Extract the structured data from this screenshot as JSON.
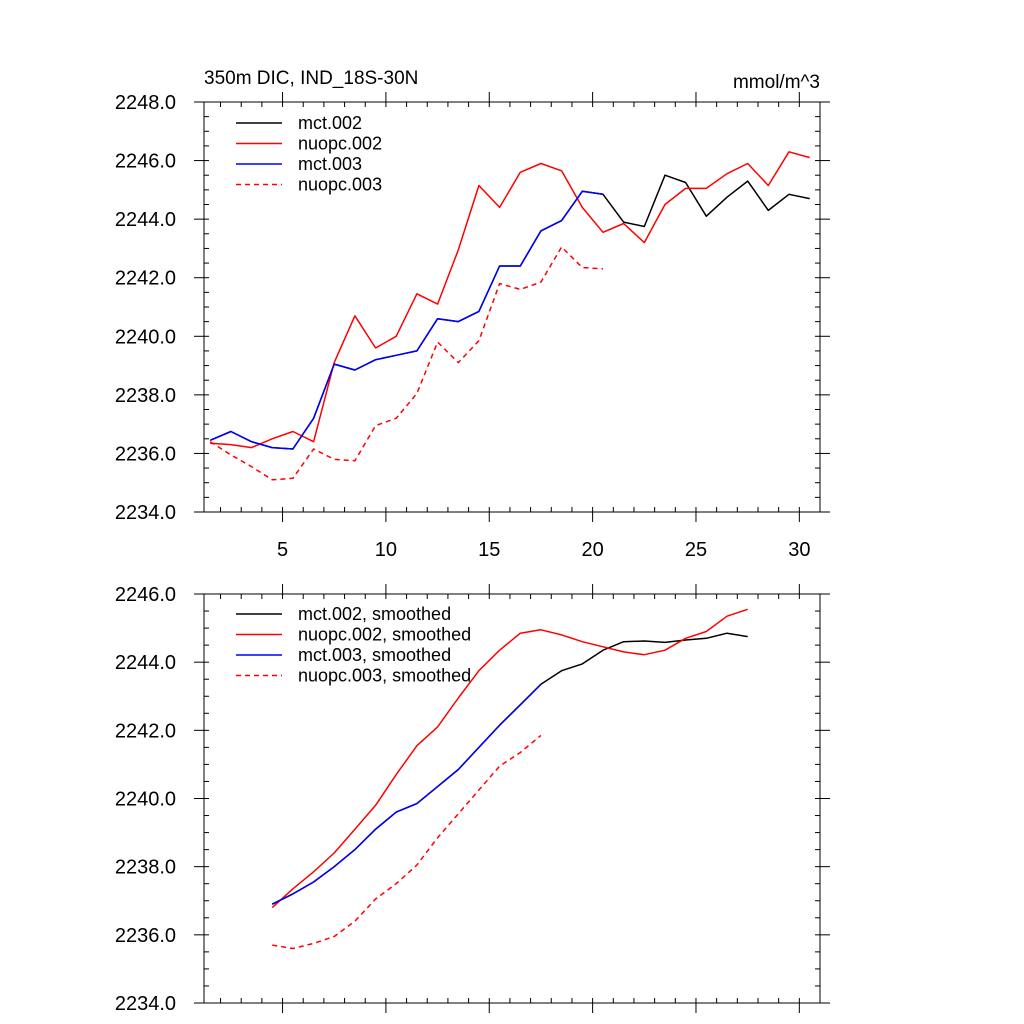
{
  "chart_data": [
    {
      "type": "line",
      "title": "350m DIC, IND_18S-30N",
      "units": "mmol/m^3",
      "xlim": [
        1.2,
        31
      ],
      "ylim": [
        2234,
        2248
      ],
      "x_ticks": [
        5,
        10,
        15,
        20,
        25,
        30
      ],
      "x_tick_labels": [
        "5",
        "10",
        "15",
        "20",
        "25",
        "30"
      ],
      "y_ticks": [
        2234,
        2236,
        2238,
        2240,
        2242,
        2244,
        2246,
        2248
      ],
      "y_tick_labels": [
        "2234.0",
        "2236.0",
        "2238.0",
        "2240.0",
        "2242.0",
        "2244.0",
        "2246.0",
        "2248.0"
      ],
      "legend_position": "top-left",
      "series": [
        {
          "name": "mct.002",
          "color": "#000000",
          "dash": "solid",
          "x": [
            1.5,
            2.5,
            3.5,
            4.5,
            5.5,
            6.5,
            7.5,
            8.5,
            9.5,
            10.5,
            11.5,
            12.5,
            13.5,
            14.5,
            15.5,
            16.5,
            17.5,
            18.5,
            19.5,
            20.5,
            21.5,
            22.5,
            23.5,
            24.5,
            25.5,
            26.5,
            27.5,
            28.5,
            29.5,
            30.5
          ],
          "values": [
            2236.45,
            2236.75,
            2236.4,
            2236.2,
            2236.15,
            2237.2,
            2239.05,
            2238.85,
            2239.2,
            2239.35,
            2239.5,
            2240.6,
            2240.5,
            2240.85,
            2242.4,
            2242.4,
            2243.6,
            2243.95,
            2244.95,
            2244.85,
            2243.9,
            2243.75,
            2245.5,
            2245.25,
            2244.1,
            2244.75,
            2245.3,
            2244.3,
            2244.85,
            2244.7
          ]
        },
        {
          "name": "nuopc.002",
          "color": "#ff0000",
          "dash": "solid",
          "x": [
            1.5,
            2.5,
            3.5,
            4.5,
            5.5,
            6.5,
            7.5,
            8.5,
            9.5,
            10.5,
            11.5,
            12.5,
            13.5,
            14.5,
            15.5,
            16.5,
            17.5,
            18.5,
            19.5,
            20.5,
            21.5,
            22.5,
            23.5,
            24.5,
            25.5,
            26.5,
            27.5,
            28.5,
            29.5,
            30.5
          ],
          "values": [
            2236.35,
            2236.3,
            2236.2,
            2236.5,
            2236.75,
            2236.4,
            2239.1,
            2240.7,
            2239.6,
            2240.0,
            2241.45,
            2241.1,
            2242.95,
            2245.15,
            2244.4,
            2245.6,
            2245.9,
            2245.65,
            2244.4,
            2243.55,
            2243.85,
            2243.2,
            2244.5,
            2245.05,
            2245.05,
            2245.55,
            2245.9,
            2245.15,
            2246.3,
            2246.1
          ]
        },
        {
          "name": "mct.003",
          "color": "#0000ff",
          "dash": "solid",
          "x": [
            1.5,
            2.5,
            3.5,
            4.5,
            5.5,
            6.5,
            7.5,
            8.5,
            9.5,
            10.5,
            11.5,
            12.5,
            13.5,
            14.5,
            15.5,
            16.5,
            17.5,
            18.5,
            19.5,
            20.5
          ],
          "values": [
            2236.45,
            2236.75,
            2236.4,
            2236.2,
            2236.15,
            2237.2,
            2239.05,
            2238.85,
            2239.2,
            2239.35,
            2239.5,
            2240.6,
            2240.5,
            2240.85,
            2242.4,
            2242.4,
            2243.6,
            2243.95,
            2244.95,
            2244.85
          ]
        },
        {
          "name": "nuopc.003",
          "color": "#ff0000",
          "dash": "dashed",
          "x": [
            1.5,
            2.5,
            3.5,
            4.5,
            5.5,
            6.5,
            7.5,
            8.5,
            9.5,
            10.5,
            11.5,
            12.5,
            13.5,
            14.5,
            15.5,
            16.5,
            17.5,
            18.5,
            19.5,
            20.5
          ],
          "values": [
            2236.4,
            2235.95,
            2235.55,
            2235.1,
            2235.15,
            2236.15,
            2235.8,
            2235.75,
            2236.95,
            2237.2,
            2238.05,
            2239.8,
            2239.1,
            2239.85,
            2241.8,
            2241.6,
            2241.85,
            2243.05,
            2242.35,
            2242.3
          ]
        }
      ]
    },
    {
      "type": "line",
      "title": "",
      "xlim": [
        1.2,
        31
      ],
      "ylim": [
        2234,
        2246
      ],
      "x_ticks": [
        5,
        10,
        15,
        20,
        25,
        30
      ],
      "x_tick_labels": [],
      "y_ticks": [
        2234,
        2236,
        2238,
        2240,
        2242,
        2244,
        2246
      ],
      "y_tick_labels": [
        "2234.0",
        "2236.0",
        "2238.0",
        "2240.0",
        "2242.0",
        "2244.0",
        "2246.0"
      ],
      "legend_position": "top-left",
      "series": [
        {
          "name": "mct.002, smoothed",
          "color": "#000000",
          "dash": "solid",
          "x": [
            4.5,
            5.5,
            6.5,
            7.5,
            8.5,
            9.5,
            10.5,
            11.5,
            12.5,
            13.5,
            14.5,
            15.5,
            16.5,
            17.5,
            18.5,
            19.5,
            20.5,
            21.5,
            22.5,
            23.5,
            24.5,
            25.5,
            26.5,
            27.5
          ],
          "values": [
            2236.9,
            2237.2,
            2237.55,
            2238.0,
            2238.5,
            2239.1,
            2239.6,
            2239.85,
            2240.35,
            2240.85,
            2241.5,
            2242.15,
            2242.75,
            2243.35,
            2243.75,
            2243.95,
            2244.35,
            2244.6,
            2244.62,
            2244.58,
            2244.65,
            2244.7,
            2244.85,
            2244.75
          ]
        },
        {
          "name": "nuopc.002, smoothed",
          "color": "#ff0000",
          "dash": "solid",
          "x": [
            4.5,
            5.5,
            6.5,
            7.5,
            8.5,
            9.5,
            10.5,
            11.5,
            12.5,
            13.5,
            14.5,
            15.5,
            16.5,
            17.5,
            18.5,
            19.5,
            20.5,
            21.5,
            22.5,
            23.5,
            24.5,
            25.5,
            26.5,
            27.5
          ],
          "values": [
            2236.8,
            2237.35,
            2237.85,
            2238.4,
            2239.1,
            2239.8,
            2240.7,
            2241.55,
            2242.1,
            2242.95,
            2243.75,
            2244.35,
            2244.85,
            2244.95,
            2244.8,
            2244.6,
            2244.45,
            2244.3,
            2244.22,
            2244.35,
            2244.7,
            2244.9,
            2245.35,
            2245.55
          ]
        },
        {
          "name": "mct.003, smoothed",
          "color": "#0000ff",
          "dash": "solid",
          "x": [
            4.5,
            5.5,
            6.5,
            7.5,
            8.5,
            9.5,
            10.5,
            11.5,
            12.5,
            13.5,
            14.5,
            15.5,
            16.5,
            17.5
          ],
          "values": [
            2236.9,
            2237.2,
            2237.55,
            2238.0,
            2238.5,
            2239.1,
            2239.6,
            2239.85,
            2240.35,
            2240.85,
            2241.5,
            2242.15,
            2242.75,
            2243.35
          ]
        },
        {
          "name": "nuopc.003, smoothed",
          "color": "#ff0000",
          "dash": "dashed",
          "x": [
            4.5,
            5.5,
            6.5,
            7.5,
            8.5,
            9.5,
            10.5,
            11.5,
            12.5,
            13.5,
            14.5,
            15.5,
            16.5,
            17.5
          ],
          "values": [
            2235.7,
            2235.6,
            2235.75,
            2235.95,
            2236.4,
            2237.05,
            2237.5,
            2238.05,
            2238.85,
            2239.55,
            2240.25,
            2240.95,
            2241.35,
            2241.85
          ]
        }
      ]
    }
  ]
}
